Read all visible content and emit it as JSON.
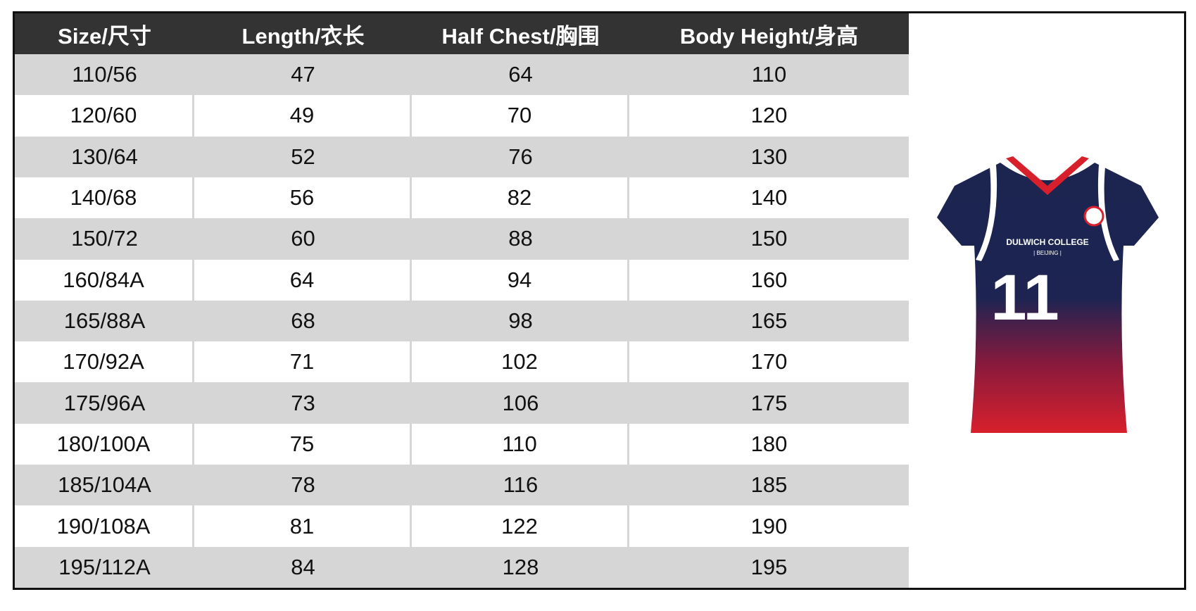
{
  "table": {
    "header": [
      "Size/尺寸",
      "Length/衣长",
      "Half Chest/胸围",
      "Body Height/身高"
    ],
    "rows": [
      [
        "110/56",
        47,
        64,
        110
      ],
      [
        "120/60",
        49,
        70,
        120
      ],
      [
        "130/64",
        52,
        76,
        130
      ],
      [
        "140/68",
        56,
        82,
        140
      ],
      [
        "150/72",
        60,
        88,
        150
      ],
      [
        "160/84A",
        64,
        94,
        160
      ],
      [
        "165/88A",
        68,
        98,
        165
      ],
      [
        "170/92A",
        71,
        102,
        170
      ],
      [
        "175/96A",
        73,
        106,
        175
      ],
      [
        "180/100A",
        75,
        110,
        180
      ],
      [
        "185/104A",
        78,
        116,
        185
      ],
      [
        "190/108A",
        81,
        122,
        190
      ],
      [
        "195/112A",
        84,
        128,
        195
      ]
    ]
  },
  "jersey": {
    "school": "DULWICH COLLEGE",
    "campus": "| BEIJING |",
    "number": "11"
  }
}
